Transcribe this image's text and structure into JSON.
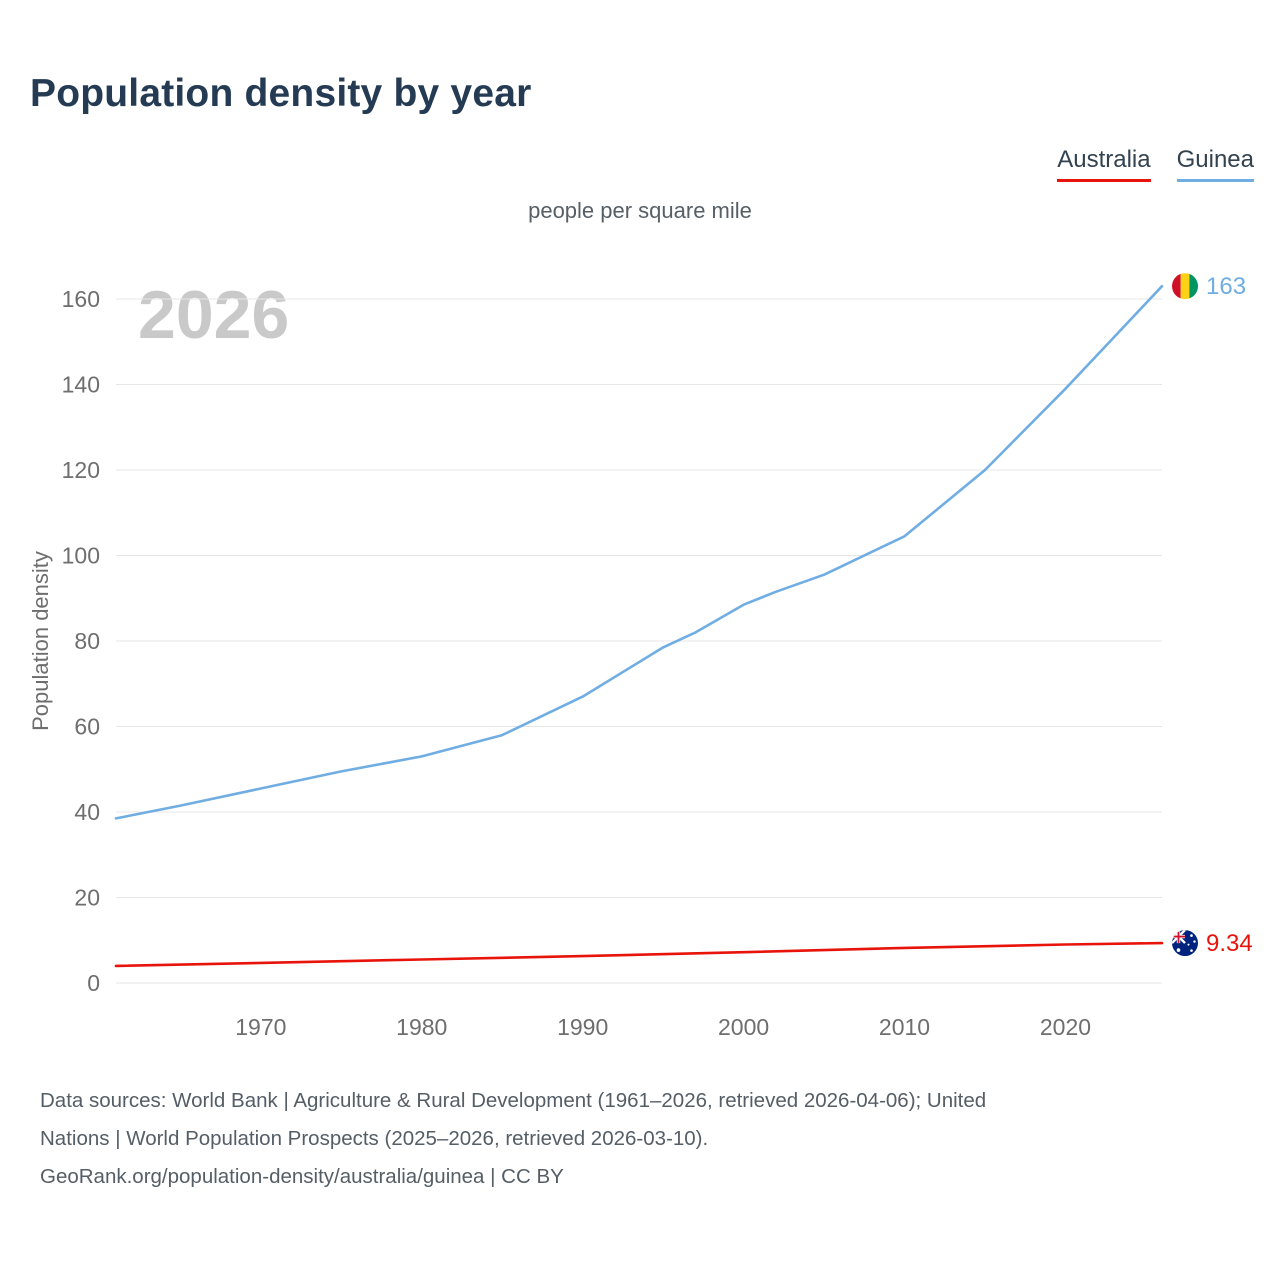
{
  "title": "Population density by year",
  "subtitle": "people per square mile",
  "watermark": "2026",
  "legend": {
    "australia": {
      "label": "Australia",
      "color": "#e8140c"
    },
    "guinea": {
      "label": "Guinea",
      "color": "#70ade3"
    }
  },
  "icons": {
    "guinea_marker": "guinea-flag-icon",
    "australia_marker": "australia-flag-icon"
  },
  "footer": {
    "line1": "Data sources: World Bank | Agriculture & Rural Development (1961–2026, retrieved 2026-04-06); United",
    "line2": "Nations | World Population Prospects (2025–2026, retrieved 2026-03-10).",
    "line3": "GeoRank.org/population-density/australia/guinea | CC BY"
  },
  "chart_data": {
    "type": "line",
    "title": "Population density by year",
    "subtitle": "people per square mile",
    "xlabel": "",
    "ylabel": "Population density",
    "xlim": [
      1961,
      2026
    ],
    "ylim": [
      0,
      160
    ],
    "yticks": [
      0,
      20,
      40,
      60,
      80,
      100,
      120,
      140,
      160
    ],
    "xticks": [
      1970,
      1980,
      1990,
      2000,
      2010,
      2020
    ],
    "grid": "horizontal",
    "legend_position": "top-right",
    "series": [
      {
        "name": "Guinea",
        "color": "#70ade3",
        "end_label": "163",
        "end_value": 163,
        "x": [
          1961,
          1965,
          1970,
          1975,
          1980,
          1985,
          1990,
          1995,
          1997,
          2000,
          2002,
          2005,
          2010,
          2015,
          2020,
          2023,
          2026
        ],
        "y": [
          38.5,
          41.5,
          45.5,
          49.5,
          53,
          58,
          67,
          78.5,
          82,
          88.5,
          91.5,
          95.5,
          104.5,
          120,
          139,
          151,
          163
        ]
      },
      {
        "name": "Australia",
        "color": "#e8140c",
        "end_label": "9.34",
        "end_value": 9.34,
        "x": [
          1961,
          1970,
          1980,
          1990,
          2000,
          2010,
          2020,
          2026
        ],
        "y": [
          4.0,
          4.7,
          5.5,
          6.3,
          7.2,
          8.2,
          9.0,
          9.34
        ]
      }
    ]
  }
}
